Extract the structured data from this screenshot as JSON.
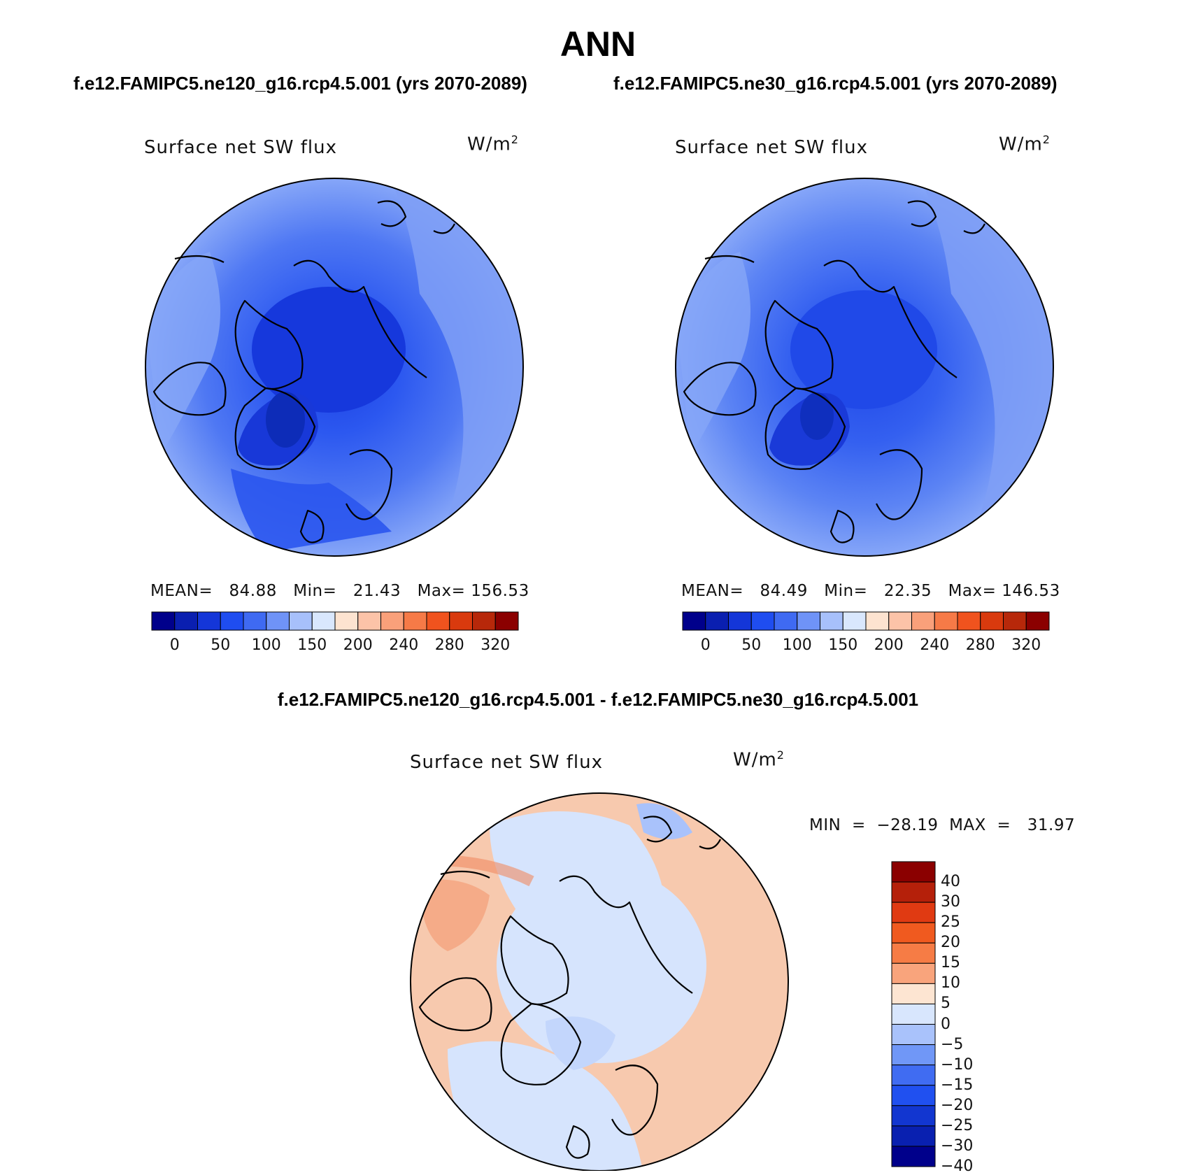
{
  "title": "ANN",
  "cases": {
    "left": "f.e12.FAMIPC5.ne120_g16.rcp4.5.001 (yrs 2070-2089)",
    "right": "f.e12.FAMIPC5.ne30_g16.rcp4.5.001 (yrs 2070-2089)"
  },
  "difference_title": "f.e12.FAMIPC5.ne120_g16.rcp4.5.001 - f.e12.FAMIPC5.ne30_g16.rcp4.5.001",
  "panels": [
    {
      "variable": "Surface net SW flux",
      "units": "W/m",
      "units_sup": "2",
      "stats_text": "MEAN=   84.88   Min=   21.43   Max= 156.53"
    },
    {
      "variable": "Surface net SW flux",
      "units": "W/m",
      "units_sup": "2",
      "stats_text": "MEAN=   84.49   Min=   22.35   Max= 146.53"
    },
    {
      "variable": "Surface net SW flux",
      "units": "W/m",
      "units_sup": "2",
      "stats_text": "MIN  =  −28.19  MAX  =   31.97"
    }
  ],
  "colorbar_main": {
    "colors": [
      "#00008b",
      "#0a1fb0",
      "#1436d8",
      "#1f4df0",
      "#3f6af2",
      "#6f93f7",
      "#a7c0fb",
      "#d9e7fd",
      "#fde3d0",
      "#fcc3a8",
      "#f9a07a",
      "#f67a47",
      "#f0531e",
      "#d93a0e",
      "#b7280a",
      "#8b0000"
    ],
    "labels": [
      "0",
      "50",
      "100",
      "150",
      "200",
      "240",
      "280",
      "320"
    ]
  },
  "colorbar_diff": {
    "colors": [
      "#8b0000",
      "#b5200a",
      "#e03a12",
      "#f05a1f",
      "#f67c45",
      "#f9a47c",
      "#fde5d2",
      "#d8e6fd",
      "#a9c2fb",
      "#7097f7",
      "#406cf2",
      "#2050f0",
      "#1236d0",
      "#0920b0",
      "#00008b"
    ],
    "labels": [
      "40",
      "30",
      "25",
      "20",
      "15",
      "10",
      "5",
      "0",
      "−5",
      "−10",
      "−15",
      "−20",
      "−25",
      "−30",
      "−40"
    ]
  },
  "colors": {
    "ocean_main_outer": "#7f9ff6",
    "ocean_main_mid": "#4b73f1",
    "arctic_core": "#1f45e6",
    "greenland_core": "#1434c8",
    "diff_pos": "#f8b595",
    "diff_neg": "#d6e4fd",
    "diff_strong_pos": "#f28a62",
    "coast": "#000000"
  }
}
